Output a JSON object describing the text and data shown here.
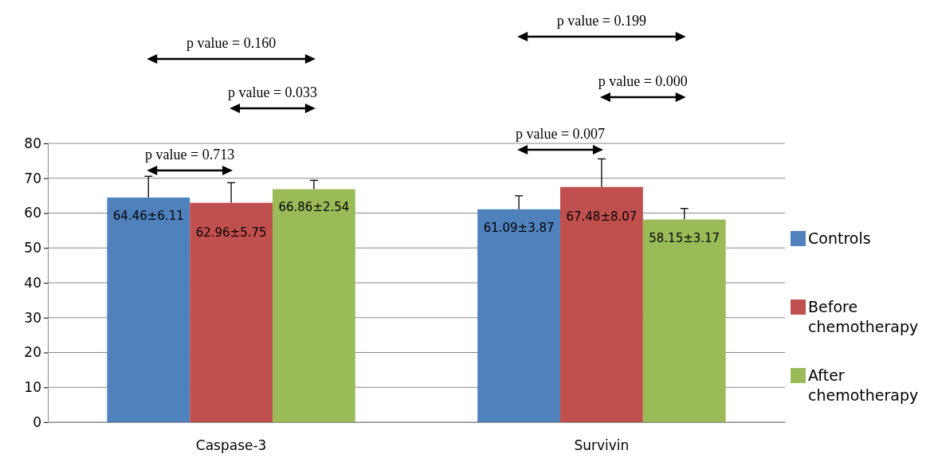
{
  "chart_data": {
    "type": "bar",
    "categories": [
      "Caspase-3",
      "Survivin"
    ],
    "series": [
      {
        "name": "Controls",
        "color": "#4f81bd",
        "values": [
          64.46,
          61.09
        ],
        "errors": [
          [
            64.46,
            70.57
          ],
          [
            61.09,
            64.96
          ]
        ],
        "value_labels": [
          "64.46±6.11",
          "61.09±3.87"
        ]
      },
      {
        "name": "Before chemotherapy",
        "color": "#c0504d",
        "values": [
          62.96,
          67.48
        ],
        "errors": [
          [
            62.96,
            68.71
          ],
          [
            67.48,
            75.55
          ]
        ],
        "value_labels": [
          "62.96±5.75",
          "67.48±8.07"
        ]
      },
      {
        "name": "After chemotherapy",
        "color": "#9bbb59",
        "values": [
          66.86,
          58.15
        ],
        "errors": [
          [
            66.86,
            69.4
          ],
          [
            58.15,
            61.32
          ]
        ],
        "value_labels": [
          "66.86±2.54",
          "58.15±3.17"
        ]
      }
    ],
    "ylim": [
      0,
      80
    ],
    "yticks": [
      0,
      10,
      20,
      30,
      40,
      50,
      60,
      70,
      80
    ],
    "grid": "y",
    "legend": "right",
    "annotations": [
      "p value = 0.160",
      "p value = 0.033",
      "p value = 0.713",
      "p value = 0.199",
      "p value = 0.000",
      "p value = 0.007"
    ]
  }
}
